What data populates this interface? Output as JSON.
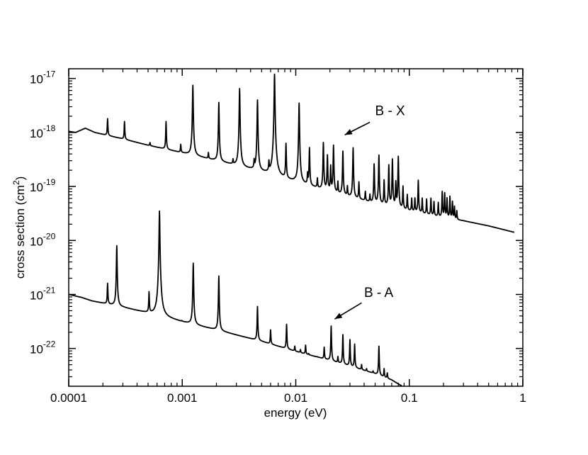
{
  "chart_data": {
    "type": "line",
    "title": "",
    "xlabel": "energy (eV)",
    "ylabel_base": "cross section (cm",
    "ylabel_exp": "2",
    "ylabel_end": ")",
    "xscale": "log",
    "yscale": "log",
    "xlim": [
      0.0001,
      1
    ],
    "ylim": [
      2e-23,
      1.5e-17
    ],
    "grid": false,
    "x_ticks": [
      {
        "value": 0.0001,
        "label": "0.0001"
      },
      {
        "value": 0.001,
        "label": "0.001"
      },
      {
        "value": 0.01,
        "label": "0.01"
      },
      {
        "value": 0.1,
        "label": "0.1"
      },
      {
        "value": 1,
        "label": "1"
      }
    ],
    "y_ticks": [
      {
        "value": 1e-22,
        "base": "10",
        "exp": "-22"
      },
      {
        "value": 1e-21,
        "base": "10",
        "exp": "-21"
      },
      {
        "value": 1e-20,
        "base": "10",
        "exp": "-20"
      },
      {
        "value": 1e-19,
        "base": "10",
        "exp": "-19"
      },
      {
        "value": 1e-18,
        "base": "10",
        "exp": "-18"
      },
      {
        "value": 1e-17,
        "base": "10",
        "exp": "-17"
      }
    ],
    "series": [
      {
        "name": "B - X",
        "x_end": 0.85,
        "background": [
          [
            0.0001,
            1.05e-18
          ],
          [
            0.000115,
            1e-18
          ],
          [
            0.00014,
            1.2e-18
          ],
          [
            0.00017,
            1e-18
          ],
          [
            0.0003,
            7.6e-19
          ],
          [
            0.0005,
            5.8e-19
          ],
          [
            0.001,
            4.2e-19
          ],
          [
            0.002,
            3e-19
          ],
          [
            0.005,
            1.85e-19
          ],
          [
            0.01,
            1.2e-19
          ],
          [
            0.02,
            8e-20
          ],
          [
            0.05,
            4.8e-20
          ],
          [
            0.1,
            3.5e-20
          ],
          [
            0.2,
            2.6e-20
          ],
          [
            0.3,
            2.3e-20
          ],
          [
            0.5,
            1.85e-20
          ],
          [
            0.85,
            1.4e-20
          ]
        ],
        "peaks": [
          [
            0.00022,
            1.8e-18
          ],
          [
            0.00031,
            1.6e-18
          ],
          [
            0.00052,
            6.5e-19
          ],
          [
            0.00072,
            1.6e-18
          ],
          [
            0.00097,
            6e-19
          ],
          [
            0.00124,
            7.5e-18
          ],
          [
            0.0017,
            4.2e-19
          ],
          [
            0.0021,
            3.6e-18
          ],
          [
            0.0028,
            3.1e-19
          ],
          [
            0.0032,
            6.5e-18
          ],
          [
            0.0043,
            2.9e-19
          ],
          [
            0.0046,
            4e-18
          ],
          [
            0.0058,
            2.7e-19
          ],
          [
            0.0065,
            1.2e-17
          ],
          [
            0.0068,
            1.6e-19
          ],
          [
            0.0082,
            6.2e-19
          ],
          [
            0.0098,
            1.25e-19
          ],
          [
            0.0107,
            3.5e-18
          ],
          [
            0.0127,
            1.7e-19
          ],
          [
            0.0132,
            5.2e-19
          ],
          [
            0.0155,
            1.4e-19
          ],
          [
            0.0175,
            6.5e-19
          ],
          [
            0.019,
            3.8e-19
          ],
          [
            0.0203,
            2.4e-19
          ],
          [
            0.0215,
            5.8e-19
          ],
          [
            0.0235,
            1.2e-19
          ],
          [
            0.026,
            4.5e-19
          ],
          [
            0.0285,
            1e-19
          ],
          [
            0.032,
            5.2e-19
          ],
          [
            0.036,
            1.2e-19
          ],
          [
            0.041,
            8e-20
          ],
          [
            0.045,
            7e-20
          ],
          [
            0.049,
            2.6e-19
          ],
          [
            0.054,
            3.8e-19
          ],
          [
            0.06,
            1.3e-19
          ],
          [
            0.066,
            2.5e-19
          ],
          [
            0.071,
            3.2e-19
          ],
          [
            0.076,
            1.2e-19
          ],
          [
            0.08,
            3.6e-19
          ],
          [
            0.088,
            1e-19
          ],
          [
            0.096,
            7e-20
          ],
          [
            0.105,
            6e-20
          ],
          [
            0.112,
            6e-20
          ],
          [
            0.12,
            1.3e-19
          ],
          [
            0.13,
            6e-20
          ],
          [
            0.142,
            5.8e-20
          ],
          [
            0.155,
            6e-20
          ],
          [
            0.165,
            5.2e-20
          ],
          [
            0.18,
            5e-20
          ],
          [
            0.195,
            8e-20
          ],
          [
            0.205,
            7.5e-20
          ],
          [
            0.215,
            6e-20
          ],
          [
            0.228,
            6.5e-20
          ],
          [
            0.24,
            5.2e-20
          ],
          [
            0.25,
            4.2e-20
          ],
          [
            0.262,
            3.5e-20
          ]
        ]
      },
      {
        "name": "B - A",
        "x_end": 0.086,
        "background": [
          [
            0.0001,
            1e-21
          ],
          [
            0.00013,
            8.8e-22
          ],
          [
            0.00016,
            7.6e-22
          ],
          [
            0.0003,
            5.8e-22
          ],
          [
            0.0005,
            4.5e-22
          ],
          [
            0.001,
            3.1e-22
          ],
          [
            0.002,
            2.2e-22
          ],
          [
            0.005,
            1.35e-22
          ],
          [
            0.01,
            8.8e-23
          ],
          [
            0.02,
            6e-23
          ],
          [
            0.05,
            3.4e-23
          ],
          [
            0.07,
            2.6e-23
          ],
          [
            0.086,
            2e-23
          ]
        ],
        "peaks": [
          [
            0.00022,
            1.6e-21
          ],
          [
            0.000265,
            8e-21
          ],
          [
            0.0004,
            4e-22
          ],
          [
            0.00051,
            1.1e-21
          ],
          [
            0.00063,
            3.5e-20
          ],
          [
            0.00099,
            3.2e-22
          ],
          [
            0.00125,
            3.8e-21
          ],
          [
            0.00168,
            2.1e-22
          ],
          [
            0.0021,
            2.2e-21
          ],
          [
            0.0028,
            1.6e-22
          ],
          [
            0.0032,
            1.6e-22
          ],
          [
            0.0042,
            1.4e-22
          ],
          [
            0.0046,
            6e-22
          ],
          [
            0.006,
            2.2e-22
          ],
          [
            0.0068,
            1e-22
          ],
          [
            0.0083,
            2.8e-22
          ],
          [
            0.0098,
            1.1e-22
          ],
          [
            0.011,
            9.5e-23
          ],
          [
            0.0122,
            1.15e-22
          ],
          [
            0.013,
            8e-23
          ],
          [
            0.0155,
            7e-23
          ],
          [
            0.0178,
            1.05e-22
          ],
          [
            0.0205,
            2.6e-22
          ],
          [
            0.0235,
            7e-23
          ],
          [
            0.026,
            1.8e-22
          ],
          [
            0.03,
            1.45e-22
          ],
          [
            0.033,
            1.2e-22
          ],
          [
            0.038,
            5e-23
          ],
          [
            0.042,
            4.2e-23
          ],
          [
            0.048,
            3.8e-23
          ],
          [
            0.054,
            1.1e-22
          ],
          [
            0.06,
            4.2e-23
          ],
          [
            0.064,
            3.5e-23
          ],
          [
            0.09,
            2.6e-23
          ]
        ]
      }
    ],
    "annotations": [
      {
        "text": "B - X",
        "label_x": 0.05,
        "label_y": 2.1e-18,
        "arrow_from": [
          0.045,
          1.55e-18
        ],
        "arrow_to": [
          0.027,
          9e-19
        ]
      },
      {
        "text": "B - A",
        "label_x": 0.04,
        "label_y": 9e-22,
        "arrow_from": [
          0.038,
          7e-22
        ],
        "arrow_to": [
          0.022,
          3.5e-22
        ]
      }
    ]
  }
}
